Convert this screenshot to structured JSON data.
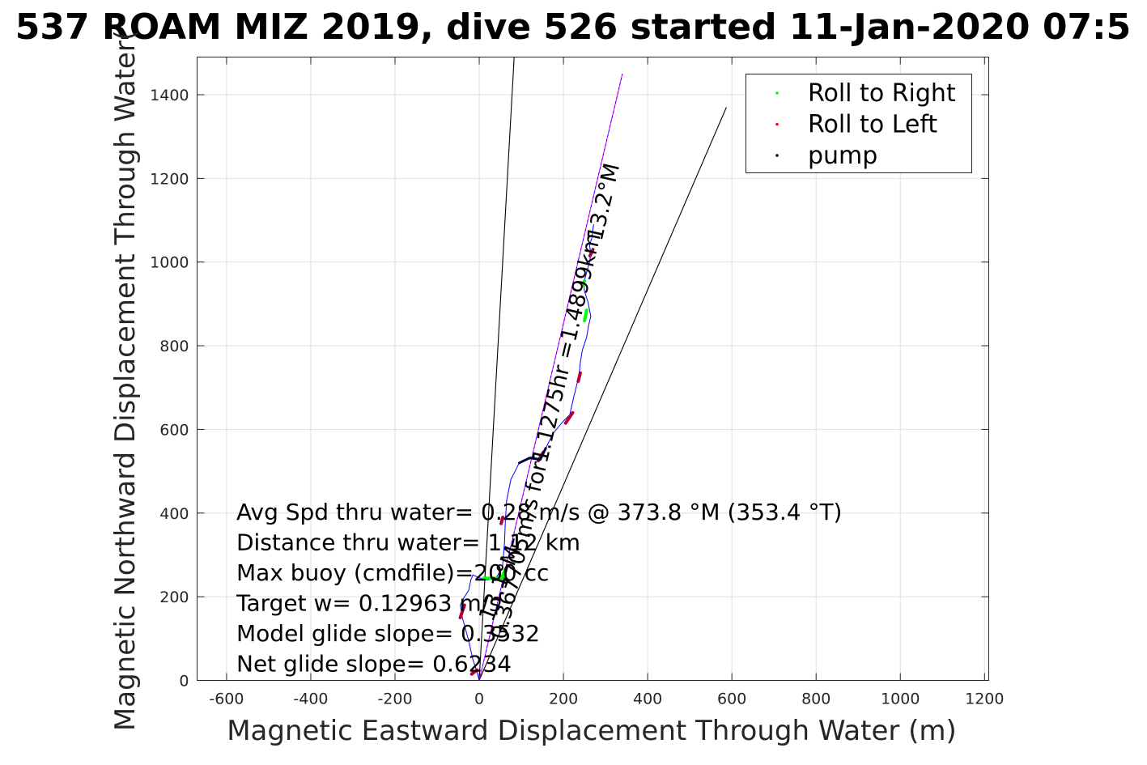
{
  "chart_data": {
    "type": "line",
    "title": "537 ROAM MIZ 2019, dive 526 started 11-Jan-2020 07:5",
    "xlabel": "Magnetic Eastward Displacement Through Water (m)",
    "ylabel": "Magnetic Northward Displacement Through Water(",
    "xlim": [
      -670,
      1210
    ],
    "ylim": [
      0,
      1490
    ],
    "xticks": [
      -600,
      -400,
      -200,
      0,
      200,
      400,
      600,
      800,
      1000,
      1200
    ],
    "yticks": [
      0,
      200,
      400,
      600,
      800,
      1000,
      1200,
      1400
    ],
    "grid": true,
    "legend_position": "top-right",
    "legend": [
      {
        "label": "Roll to Right",
        "color": "#00ff00"
      },
      {
        "label": "Roll to Left",
        "color": "#ff0000"
      },
      {
        "label": "pump",
        "color": "#000000"
      }
    ],
    "track": {
      "color": "#0000ff",
      "x": [
        0,
        -5,
        -15,
        -25,
        -40,
        -45,
        -35,
        -25,
        -20,
        -15,
        -10,
        0,
        20,
        40,
        55,
        60,
        62,
        65,
        75,
        95,
        120,
        145,
        158,
        175,
        200,
        215,
        225,
        235,
        238,
        240,
        245,
        255,
        260,
        265,
        258,
        250,
        248,
        255,
        262,
        265,
        262,
        268,
        270,
        272
      ],
      "y": [
        0,
        20,
        50,
        95,
        150,
        180,
        200,
        215,
        240,
        252,
        250,
        245,
        240,
        245,
        270,
        330,
        380,
        430,
        480,
        520,
        530,
        528,
        555,
        590,
        620,
        635,
        680,
        720,
        740,
        760,
        790,
        820,
        850,
        870,
        905,
        930,
        950,
        975,
        1000,
        1020,
        1040,
        1060,
        1080,
        1090
      ]
    },
    "roll_right_segments": [
      {
        "x": [
          10,
          60
        ],
        "y": [
          244,
          244
        ]
      },
      {
        "x": [
          250,
          255
        ],
        "y": [
          860,
          885
        ]
      },
      {
        "x": [
          245,
          250
        ],
        "y": [
          945,
          955
        ]
      },
      {
        "x": [
          55,
          62
        ],
        "y": [
          250,
          265
        ]
      }
    ],
    "roll_left_segments": [
      {
        "x": [
          -45,
          -35
        ],
        "y": [
          150,
          180
        ]
      },
      {
        "x": [
          -18,
          -5
        ],
        "y": [
          15,
          25
        ]
      },
      {
        "x": [
          205,
          222
        ],
        "y": [
          615,
          640
        ]
      },
      {
        "x": [
          235,
          240
        ],
        "y": [
          715,
          735
        ]
      },
      {
        "x": [
          263,
          270
        ],
        "y": [
          1015,
          1030
        ]
      },
      {
        "x": [
          140,
          152
        ],
        "y": [
          525,
          545
        ]
      },
      {
        "x": [
          52,
          56
        ],
        "y": [
          375,
          390
        ]
      }
    ],
    "pump_segments": [
      {
        "x": [
          95,
          120,
          145,
          158
        ],
        "y": [
          520,
          532,
          528,
          555
        ]
      }
    ],
    "reference_lines": [
      {
        "color": "#000000",
        "x": [
          0,
          83
        ],
        "y": [
          0,
          1490
        ]
      },
      {
        "color": "#000000",
        "x": [
          0,
          587
        ],
        "y": [
          0,
          1370
        ]
      },
      {
        "color": "#ff00ff",
        "x": [
          0,
          340
        ],
        "y": [
          0,
          1450
        ]
      },
      {
        "color": "#0000ff",
        "x": [
          0,
          340
        ],
        "y": [
          0,
          1450
        ]
      }
    ],
    "rotated_labels": [
      {
        "text": "0.367705m/s for1.1275hr =1.4899km",
        "x": 175,
        "y": 580,
        "angle": -76.8
      },
      {
        "text": "13.2°M",
        "x": 312,
        "y": 1140,
        "angle": -76.8
      },
      {
        "text": "13.1°M",
        "x": 65,
        "y": 225,
        "angle": -69
      }
    ],
    "annotations": [
      "Avg Spd thru water= 0.28 m/s @ 373.8 °M (353.4 °T)",
      "Distance thru water= 1.12 km",
      "Max buoy (cmdfile)=200 cc",
      "Target w= 0.12963 m/s",
      "Model glide slope= 0.3532",
      "Net glide slope= 0.6234"
    ]
  }
}
